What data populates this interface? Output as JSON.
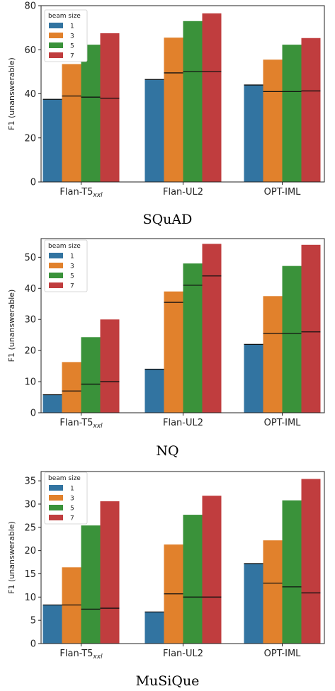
{
  "colors": {
    "1": "#3274a1",
    "3": "#e1812c",
    "5": "#3a923a",
    "7": "#c03d3e"
  },
  "chart_data": [
    {
      "type": "bar",
      "caption": "SQuAD",
      "ylabel": "F1 (unanswerable)",
      "ylim": [
        0,
        80
      ],
      "yticks": [
        0,
        20,
        40,
        60,
        80
      ],
      "categories": [
        "Flan-T5",
        "Flan-UL2",
        "OPT-IML"
      ],
      "category_subscript": [
        "xxl",
        "",
        ""
      ],
      "legend_title": "beam size",
      "legend_position": "top-left",
      "series": [
        {
          "name": "1",
          "values": [
            37.5,
            46.5,
            44.0
          ],
          "markers": [
            37.5,
            46.5,
            44.0
          ]
        },
        {
          "name": "3",
          "values": [
            53.5,
            65.5,
            55.5
          ],
          "markers": [
            39.0,
            49.5,
            41.0
          ]
        },
        {
          "name": "5",
          "values": [
            62.3,
            73.0,
            62.3
          ],
          "markers": [
            38.5,
            50.0,
            41.0
          ]
        },
        {
          "name": "7",
          "values": [
            67.5,
            76.5,
            65.3
          ],
          "markers": [
            38.0,
            50.0,
            41.3
          ]
        }
      ]
    },
    {
      "type": "bar",
      "caption": "NQ",
      "ylabel": "F1 (unanswerable)",
      "ylim": [
        0,
        56
      ],
      "yticks": [
        0,
        10,
        20,
        30,
        40,
        50
      ],
      "categories": [
        "Flan-T5",
        "Flan-UL2",
        "OPT-IML"
      ],
      "category_subscript": [
        "xxl",
        "",
        ""
      ],
      "legend_title": "beam size",
      "legend_position": "top-left",
      "series": [
        {
          "name": "1",
          "values": [
            5.8,
            14.0,
            22.0
          ],
          "markers": [
            5.8,
            14.0,
            22.0
          ]
        },
        {
          "name": "3",
          "values": [
            16.3,
            39.0,
            37.5
          ],
          "markers": [
            7.0,
            35.5,
            25.5
          ]
        },
        {
          "name": "5",
          "values": [
            24.3,
            48.0,
            47.2
          ],
          "markers": [
            9.2,
            41.0,
            25.5
          ]
        },
        {
          "name": "7",
          "values": [
            30.0,
            54.3,
            54.0
          ],
          "markers": [
            10.0,
            44.0,
            26.0
          ]
        }
      ]
    },
    {
      "type": "bar",
      "caption": "MuSiQue",
      "ylabel": "F1 (unanswerable)",
      "ylim": [
        0,
        37
      ],
      "yticks": [
        0,
        5,
        10,
        15,
        20,
        25,
        30,
        35
      ],
      "categories": [
        "Flan-T5",
        "Flan-UL2",
        "OPT-IML"
      ],
      "category_subscript": [
        "xxl",
        "",
        ""
      ],
      "legend_title": "beam size",
      "legend_position": "top-left",
      "series": [
        {
          "name": "1",
          "values": [
            8.3,
            6.8,
            17.2
          ],
          "markers": [
            8.3,
            6.8,
            17.2
          ]
        },
        {
          "name": "3",
          "values": [
            16.4,
            21.3,
            22.2
          ],
          "markers": [
            8.3,
            10.7,
            13.0
          ]
        },
        {
          "name": "5",
          "values": [
            25.4,
            27.7,
            30.8
          ],
          "markers": [
            7.4,
            10.0,
            12.2
          ]
        },
        {
          "name": "7",
          "values": [
            30.6,
            31.8,
            35.4
          ],
          "markers": [
            7.6,
            10.0,
            10.9
          ]
        }
      ]
    }
  ]
}
